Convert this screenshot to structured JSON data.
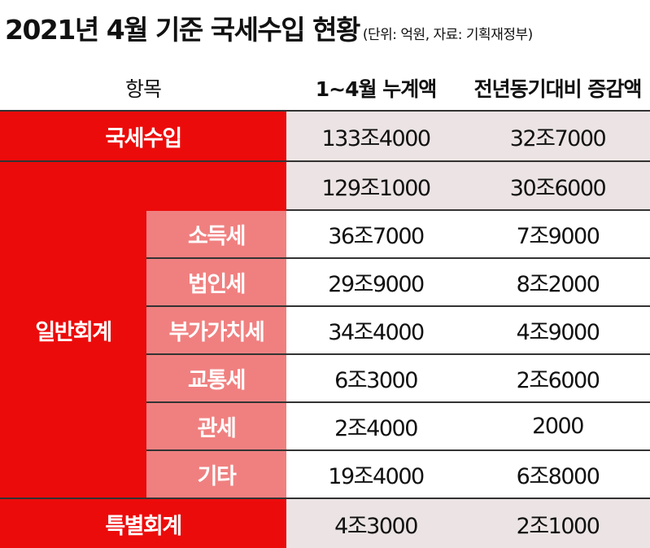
{
  "title": {
    "main": "2021년 4월 기준 국세수입 현황",
    "unit": "(단위: 억원, 자료: 기획재정부)"
  },
  "columns": {
    "item": "항목",
    "cumulative": "1~4월 누계액",
    "yoy_change": "전년동기대비 증감액"
  },
  "rows": {
    "total": {
      "label": "국세수입",
      "cumulative": "133조4000",
      "yoy_change": "32조7000"
    },
    "general": {
      "label": "일반회계",
      "cumulative": "129조1000",
      "yoy_change": "30조6000",
      "items": [
        {
          "label": "소득세",
          "cumulative": "36조7000",
          "yoy_change": "7조9000"
        },
        {
          "label": "법인세",
          "cumulative": "29조9000",
          "yoy_change": "8조2000"
        },
        {
          "label": "부가가치세",
          "cumulative": "34조4000",
          "yoy_change": "4조9000"
        },
        {
          "label": "교통세",
          "cumulative": "6조3000",
          "yoy_change": "2조6000"
        },
        {
          "label": "관세",
          "cumulative": "2조4000",
          "yoy_change": "2000"
        },
        {
          "label": "기타",
          "cumulative": "19조4000",
          "yoy_change": "6조8000"
        }
      ]
    },
    "special": {
      "label": "특별회계",
      "cumulative": "4조3000",
      "yoy_change": "2조1000"
    }
  },
  "colors": {
    "header_red": "#ec0b0b",
    "sub_pink": "#f08080",
    "value_shade": "#ece4e4"
  }
}
